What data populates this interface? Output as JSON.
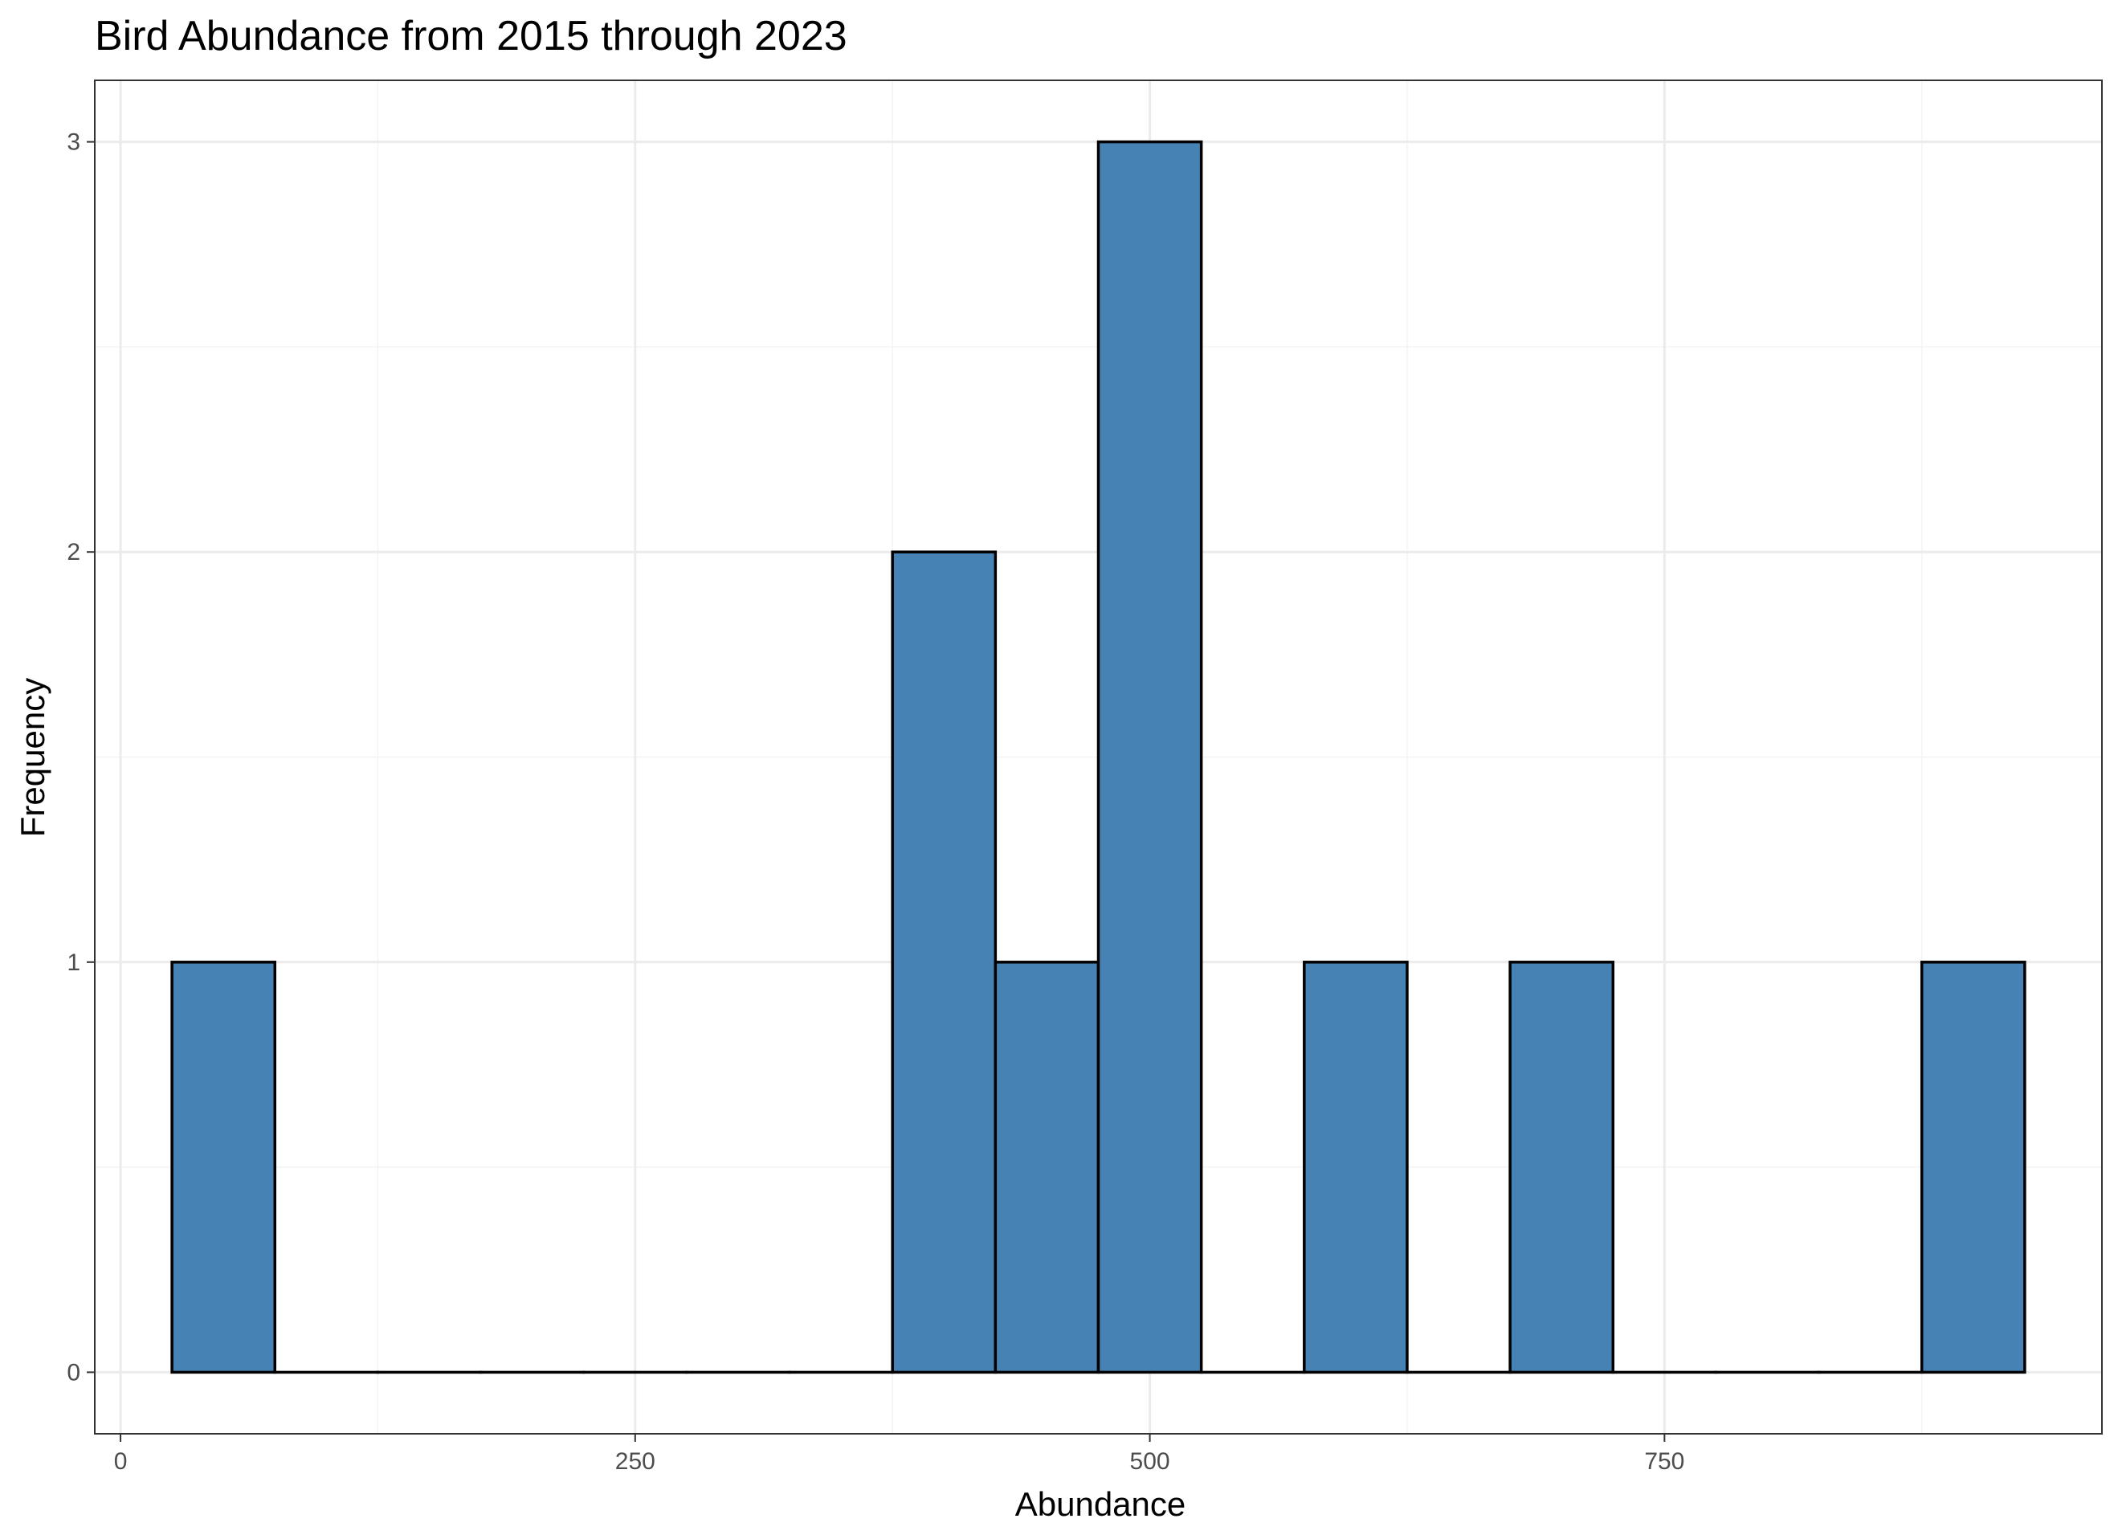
{
  "chart_data": {
    "type": "bar",
    "title": "Bird Abundance from 2015 through 2023",
    "xlabel": "Abundance",
    "ylabel": "Frequency",
    "bin_width": 50,
    "bins": [
      {
        "x_start": 25,
        "x_end": 75,
        "count": 1
      },
      {
        "x_start": 75,
        "x_end": 125,
        "count": 0
      },
      {
        "x_start": 125,
        "x_end": 175,
        "count": 0
      },
      {
        "x_start": 175,
        "x_end": 225,
        "count": 0
      },
      {
        "x_start": 225,
        "x_end": 275,
        "count": 0
      },
      {
        "x_start": 275,
        "x_end": 325,
        "count": 0
      },
      {
        "x_start": 325,
        "x_end": 375,
        "count": 0
      },
      {
        "x_start": 375,
        "x_end": 425,
        "count": 2
      },
      {
        "x_start": 425,
        "x_end": 475,
        "count": 1
      },
      {
        "x_start": 475,
        "x_end": 525,
        "count": 3
      },
      {
        "x_start": 525,
        "x_end": 575,
        "count": 0
      },
      {
        "x_start": 575,
        "x_end": 625,
        "count": 1
      },
      {
        "x_start": 625,
        "x_end": 675,
        "count": 0
      },
      {
        "x_start": 675,
        "x_end": 725,
        "count": 1
      },
      {
        "x_start": 725,
        "x_end": 775,
        "count": 0
      },
      {
        "x_start": 775,
        "x_end": 825,
        "count": 0
      },
      {
        "x_start": 825,
        "x_end": 875,
        "count": 0
      },
      {
        "x_start": 875,
        "x_end": 925,
        "count": 1
      }
    ],
    "xlim": [
      -12.5,
      962.5
    ],
    "ylim": [
      -0.15,
      3.15
    ],
    "x_ticks": [
      0,
      250,
      500,
      750
    ],
    "x_tick_labels": [
      "0",
      "250",
      "500",
      "750"
    ],
    "y_ticks": [
      0,
      1,
      2,
      3
    ],
    "y_tick_labels": [
      "0",
      "1",
      "2",
      "3"
    ],
    "grid": true,
    "legend": "none",
    "colors": {
      "bar_fill": "#4682B4",
      "bar_outline": "#000000",
      "grid_major": "#ebebeb",
      "grid_minor": "#f4f4f4",
      "panel_border": "#333333",
      "tick_text": "#4d4d4d"
    }
  }
}
